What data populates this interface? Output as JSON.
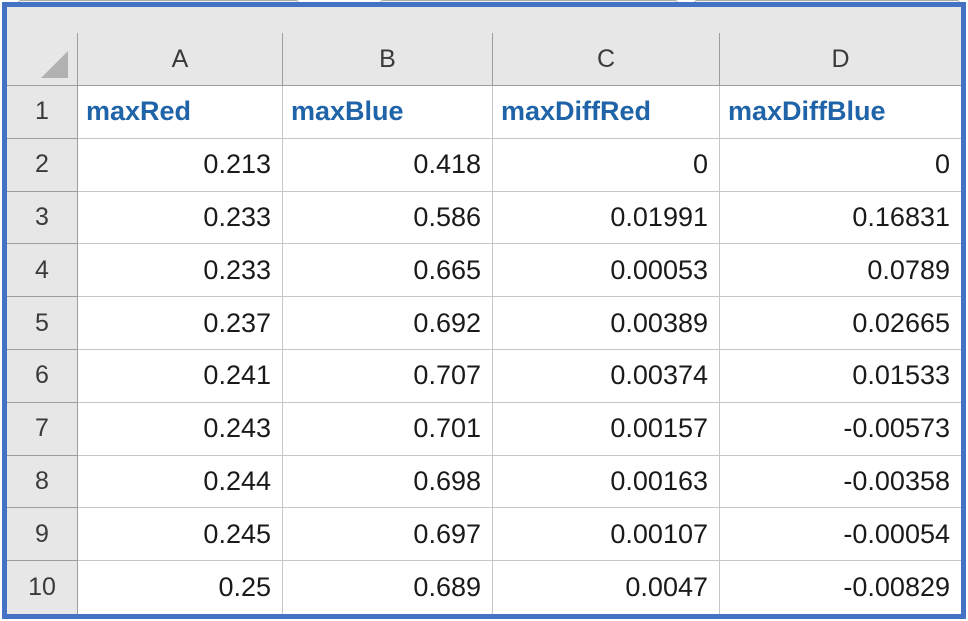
{
  "sheet": {
    "title": "spreadsheet-data-grid",
    "column_headers": [
      "A",
      "B",
      "C",
      "D"
    ],
    "field_names_row": 1,
    "rows": [
      {
        "n": "1",
        "cells": [
          "maxRed",
          "maxBlue",
          "maxDiffRed",
          "maxDiffBlue"
        ]
      },
      {
        "n": "2",
        "cells": [
          "0.213",
          "0.418",
          "0",
          "0"
        ]
      },
      {
        "n": "3",
        "cells": [
          "0.233",
          "0.586",
          "0.01991",
          "0.16831"
        ]
      },
      {
        "n": "4",
        "cells": [
          "0.233",
          "0.665",
          "0.00053",
          "0.0789"
        ]
      },
      {
        "n": "5",
        "cells": [
          "0.237",
          "0.692",
          "0.00389",
          "0.02665"
        ]
      },
      {
        "n": "6",
        "cells": [
          "0.241",
          "0.707",
          "0.00374",
          "0.01533"
        ]
      },
      {
        "n": "7",
        "cells": [
          "0.243",
          "0.701",
          "0.00157",
          "-0.00573"
        ]
      },
      {
        "n": "8",
        "cells": [
          "0.244",
          "0.698",
          "0.00163",
          "-0.00358"
        ]
      },
      {
        "n": "9",
        "cells": [
          "0.245",
          "0.697",
          "0.00107",
          "-0.00054"
        ]
      },
      {
        "n": "10",
        "cells": [
          "0.25",
          "0.689",
          "0.0047",
          "-0.00829"
        ]
      }
    ]
  },
  "colors": {
    "frame_border": "#4472C4",
    "header_fill": "#E7E7E7",
    "header_border": "#9D9D9D",
    "gridline": "#C6C6C6",
    "header_text": "#3A3A3A",
    "data_text": "#1A1A1A",
    "field_header_text": "#1F63A8",
    "select_all_triangle": "#B1B1B1"
  }
}
